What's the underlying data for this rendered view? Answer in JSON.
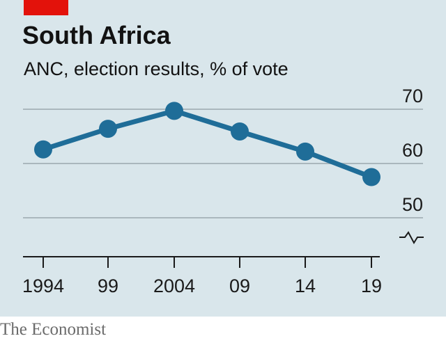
{
  "header": {
    "title": "South Africa",
    "subtitle": "ANC, election results, % of vote"
  },
  "footer": {
    "source": "The Economist"
  },
  "colors": {
    "panel_background": "#d9e6eb",
    "series_line": "#1f6d98",
    "tag": "#e3120b",
    "gridline": "#aab7bd"
  },
  "chart_data": {
    "type": "line",
    "title": "South Africa",
    "subtitle": "ANC, election results, % of vote",
    "x": [
      "1994",
      "99",
      "2004",
      "09",
      "14",
      "19"
    ],
    "series": [
      {
        "values": [
          62.6,
          66.4,
          69.7,
          65.9,
          62.2,
          57.5
        ]
      }
    ],
    "y_ticks": [
      "50",
      "60",
      "70"
    ],
    "ylim": [
      45,
      70
    ],
    "axis_break": true,
    "y_axis_position": "right",
    "grid": true,
    "legend": "none"
  }
}
